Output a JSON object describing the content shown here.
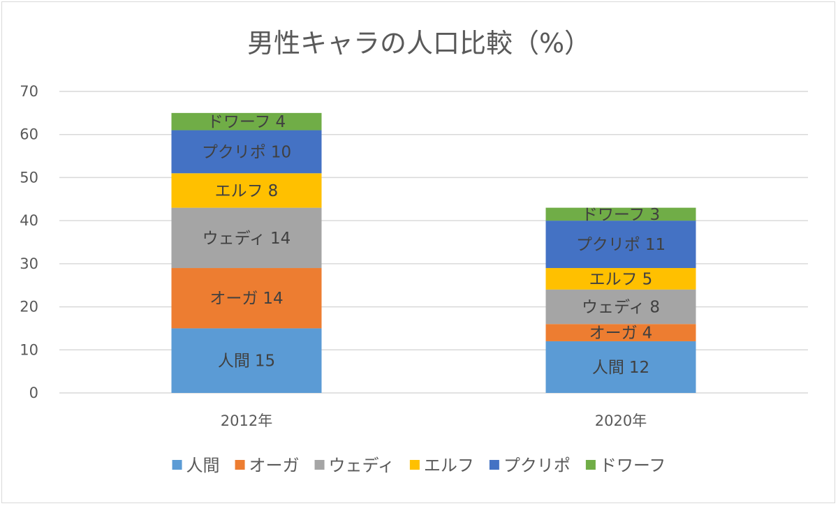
{
  "chart_data": {
    "type": "bar",
    "stacked": true,
    "title": "男性キャラの人口比較（%）",
    "xlabel": "",
    "ylabel": "",
    "ylim": [
      0,
      70
    ],
    "y_ticks": [
      0,
      10,
      20,
      30,
      40,
      50,
      60,
      70
    ],
    "grid": true,
    "legend_position": "bottom",
    "categories": [
      "2012年",
      "2020年"
    ],
    "series": [
      {
        "name": "人間",
        "values": [
          15,
          12
        ],
        "color": "#5b9bd5"
      },
      {
        "name": "オーガ",
        "values": [
          14,
          4
        ],
        "color": "#ed7d31"
      },
      {
        "name": "ウェディ",
        "values": [
          14,
          8
        ],
        "color": "#a5a5a5"
      },
      {
        "name": "エルフ",
        "values": [
          8,
          5
        ],
        "color": "#ffc000"
      },
      {
        "name": "プクリポ",
        "values": [
          10,
          11
        ],
        "color": "#4472c4"
      },
      {
        "name": "ドワーフ",
        "values": [
          4,
          3
        ],
        "color": "#70ad47"
      }
    ]
  }
}
